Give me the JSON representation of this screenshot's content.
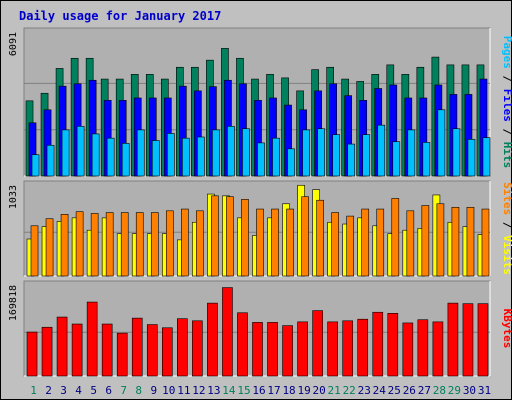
{
  "title": "Daily usage for January 2017",
  "colors": {
    "hits": "#00805c",
    "files": "#0000ff",
    "pages": "#00c0ff",
    "visits": "#ffff00",
    "sites": "#ff8000",
    "kbytes": "#ff0000",
    "background": "#c0c0c0",
    "plot_bg": "#b0b0b0",
    "title": "#0000cc"
  },
  "chart_data": [
    {
      "type": "bar",
      "panel": "hits-files-pages",
      "max_label": "6091",
      "right_labels": [
        {
          "text": "Pages",
          "color": "#00c0ff"
        },
        {
          "text": " / ",
          "color": "#000000"
        },
        {
          "text": "Files",
          "color": "#0000ff"
        },
        {
          "text": " / ",
          "color": "#000000"
        },
        {
          "text": "Hits",
          "color": "#00805c"
        }
      ],
      "ylim": [
        0,
        6091
      ],
      "grid": true,
      "categories": [
        "1",
        "2",
        "3",
        "4",
        "5",
        "6",
        "7",
        "8",
        "9",
        "10",
        "11",
        "12",
        "13",
        "14",
        "15",
        "16",
        "17",
        "18",
        "19",
        "20",
        "21",
        "22",
        "23",
        "24",
        "25",
        "26",
        "27",
        "28",
        "29",
        "30",
        "31"
      ],
      "series": [
        {
          "name": "Hits",
          "color": "#00805c",
          "values": [
            3180,
            3500,
            4550,
            4980,
            4980,
            4100,
            4100,
            4300,
            4300,
            4100,
            4600,
            4600,
            4900,
            5400,
            4980,
            4100,
            4300,
            4150,
            3600,
            4500,
            4600,
            4100,
            4000,
            4300,
            4700,
            4300,
            4600,
            5030,
            4700,
            4700,
            4700
          ]
        },
        {
          "name": "Files",
          "color": "#0000ff",
          "values": [
            2250,
            2800,
            3800,
            3900,
            4050,
            3200,
            3200,
            3300,
            3300,
            3300,
            3800,
            3600,
            3780,
            4050,
            3900,
            3200,
            3300,
            3000,
            2800,
            3600,
            3900,
            3400,
            3200,
            3700,
            3850,
            3300,
            3300,
            3850,
            3450,
            3450,
            4100
          ]
        },
        {
          "name": "Pages",
          "color": "#00c0ff",
          "values": [
            900,
            1300,
            1950,
            2100,
            1780,
            1600,
            1380,
            1950,
            1500,
            1800,
            1600,
            1650,
            1950,
            2100,
            2000,
            1400,
            1600,
            1150,
            1950,
            2000,
            1750,
            1350,
            1750,
            2150,
            1450,
            1950,
            1420,
            2800,
            2000,
            1550,
            1620
          ]
        }
      ]
    },
    {
      "type": "bar",
      "panel": "visits-sites",
      "max_label": "1033",
      "right_labels": [
        {
          "text": "Sites",
          "color": "#ff8000"
        },
        {
          "text": " / ",
          "color": "#000000"
        },
        {
          "text": "Visits",
          "color": "#ffff00"
        }
      ],
      "ylim": [
        0,
        1033
      ],
      "grid": true,
      "categories": [
        "1",
        "2",
        "3",
        "4",
        "5",
        "6",
        "7",
        "8",
        "9",
        "10",
        "11",
        "12",
        "13",
        "14",
        "15",
        "16",
        "17",
        "18",
        "19",
        "20",
        "21",
        "22",
        "23",
        "24",
        "25",
        "26",
        "27",
        "28",
        "29",
        "30",
        "31"
      ],
      "series": [
        {
          "name": "Visits",
          "color": "#ffff00",
          "values": [
            420,
            560,
            620,
            660,
            520,
            660,
            480,
            480,
            480,
            480,
            410,
            610,
            930,
            910,
            660,
            460,
            660,
            820,
            1030,
            980,
            610,
            590,
            660,
            570,
            480,
            520,
            540,
            920,
            610,
            560,
            470
          ]
        },
        {
          "name": "Sites",
          "color": "#ff8000",
          "values": [
            570,
            650,
            700,
            730,
            710,
            720,
            720,
            720,
            720,
            740,
            760,
            740,
            910,
            900,
            870,
            760,
            760,
            760,
            900,
            860,
            720,
            680,
            760,
            760,
            880,
            740,
            800,
            820,
            780,
            780,
            760
          ]
        }
      ]
    },
    {
      "type": "bar",
      "panel": "kbytes",
      "max_label": "169818",
      "right_labels": [
        {
          "text": "KBytes",
          "color": "#ff0000"
        }
      ],
      "ylim": [
        0,
        169818
      ],
      "grid": true,
      "categories": [
        "1",
        "2",
        "3",
        "4",
        "5",
        "6",
        "7",
        "8",
        "9",
        "10",
        "11",
        "12",
        "13",
        "14",
        "15",
        "16",
        "17",
        "18",
        "19",
        "20",
        "21",
        "22",
        "23",
        "24",
        "25",
        "26",
        "27",
        "28",
        "29",
        "30",
        "31"
      ],
      "series": [
        {
          "name": "KBytes",
          "color": "#ff0000",
          "values": [
            82000,
            91000,
            110000,
            97000,
            138000,
            97000,
            80000,
            108000,
            96000,
            90000,
            107000,
            103000,
            136000,
            165000,
            118000,
            100000,
            100000,
            94000,
            101000,
            122000,
            101000,
            103000,
            106000,
            119000,
            117000,
            99000,
            105000,
            101000,
            136000,
            135000,
            135000
          ]
        }
      ]
    }
  ],
  "x_labels": {
    "values": [
      "1",
      "2",
      "3",
      "4",
      "5",
      "6",
      "7",
      "8",
      "9",
      "10",
      "11",
      "12",
      "13",
      "14",
      "15",
      "16",
      "17",
      "18",
      "19",
      "20",
      "21",
      "22",
      "23",
      "24",
      "25",
      "26",
      "27",
      "28",
      "29",
      "30",
      "31"
    ],
    "weekend_color": "#00805c",
    "weekday_color": "#000080",
    "weekend_days": [
      "1",
      "7",
      "8",
      "14",
      "15",
      "21",
      "22",
      "28",
      "29"
    ]
  }
}
